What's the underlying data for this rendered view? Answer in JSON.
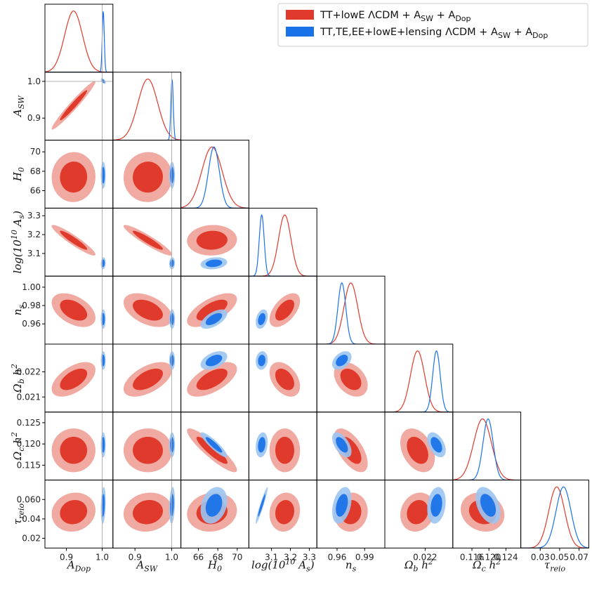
{
  "chart_data": {
    "type": "corner",
    "title": "",
    "legend": {
      "placement": "top-right",
      "entries": [
        {
          "label": "TT+lowE ΛCDM + A_SW + A_Dop",
          "color": "#e03a2c"
        },
        {
          "label": "TT,TE,EE+lowE+lensing ΛCDM + A_SW + A_Dop",
          "color": "#1a72e8"
        }
      ]
    },
    "colors": {
      "red_outer": "#f0aaa2",
      "red_inner": "#e03a2c",
      "blue_outer": "#9cc5f2",
      "blue_inner": "#1a72e8",
      "red_line": "#e03a2c",
      "blue_line": "#1a72e8",
      "reference": "#b0b0b0"
    },
    "parameters": [
      {
        "name": "A_Dop",
        "label": "A_Dop",
        "range": [
          0.84,
          1.03
        ],
        "ticks": [
          0.9,
          1.0
        ],
        "tick_labels": [
          "0.9",
          "1.0"
        ],
        "reference": 1.0
      },
      {
        "name": "A_SW",
        "label": "A_SW",
        "range": [
          0.84,
          1.025
        ],
        "ticks": [
          0.9,
          1.0
        ],
        "tick_labels": [
          "0.9",
          "1.0"
        ],
        "reference": 1.0
      },
      {
        "name": "H0",
        "label": "H_0",
        "range": [
          64.2,
          71.2
        ],
        "ticks": [
          66,
          68,
          70
        ],
        "tick_labels": [
          "66",
          "68",
          "70"
        ]
      },
      {
        "name": "logA",
        "label": "log(10^10 A_s)",
        "range": [
          2.98,
          3.34
        ],
        "ticks": [
          3.1,
          3.2,
          3.3
        ],
        "tick_labels": [
          "3.1",
          "3.2",
          "3.3"
        ]
      },
      {
        "name": "ns",
        "label": "n_s",
        "range": [
          0.938,
          1.012
        ],
        "ticks": [
          0.96,
          0.98,
          1.0
        ],
        "tick_labels": [
          "0.96",
          "0.98",
          "1.00"
        ],
        "x_tick_labels": [
          "0.96",
          "0.99"
        ],
        "x_ticks": [
          0.96,
          0.99
        ]
      },
      {
        "name": "ombh2",
        "label": "Ω_b h^2",
        "range": [
          0.0204,
          0.0231
        ],
        "ticks": [
          0.021,
          0.022
        ],
        "tick_labels": [
          "0.021",
          "0.022"
        ],
        "x_ticks": [
          0.022
        ],
        "x_tick_labels": [
          "0.022"
        ]
      },
      {
        "name": "omch2",
        "label": "Ω_c h^2",
        "range": [
          0.1115,
          0.1275
        ],
        "ticks": [
          0.115,
          0.12,
          0.125
        ],
        "tick_labels": [
          "0.115",
          "0.120",
          "0.125"
        ],
        "x_ticks": [
          0.116,
          0.12,
          0.124
        ],
        "x_tick_labels": [
          "0.116",
          "0.120",
          "0.124"
        ]
      },
      {
        "name": "tau",
        "label": "τ_reio",
        "range": [
          0.01,
          0.08
        ],
        "ticks": [
          0.02,
          0.04,
          0.06
        ],
        "tick_labels": [
          "0.02",
          "0.04",
          "0.060"
        ],
        "x_ticks": [
          0.03,
          0.05,
          0.07
        ],
        "x_tick_labels": [
          "0.03",
          "0.05",
          "0.07"
        ]
      }
    ],
    "series": [
      {
        "name": "TT+lowE ΛCDM + A_SW + A_Dop",
        "mean": [
          0.92,
          0.935,
          67.4,
          3.17,
          0.975,
          0.0217,
          0.1185,
          0.047
        ],
        "sigma": [
          0.025,
          0.027,
          1.05,
          0.033,
          0.0075,
          0.00028,
          0.0021,
          0.0082
        ]
      },
      {
        "name": "TT,TE,EE+lowE+lensing ΛCDM + A_SW + A_Dop",
        "mean": [
          1.003,
          1.001,
          67.6,
          3.048,
          0.9652,
          0.02245,
          0.1198,
          0.054
        ],
        "sigma": [
          0.0028,
          0.0032,
          0.56,
          0.013,
          0.0043,
          0.00015,
          0.0012,
          0.0077
        ]
      }
    ],
    "correlations": {
      "red": [
        [
          0,
          1,
          0.97
        ],
        [
          0,
          2,
          0.02
        ],
        [
          0,
          3,
          -0.93
        ],
        [
          0,
          4,
          -0.45
        ],
        [
          0,
          5,
          0.55
        ],
        [
          0,
          6,
          0.0
        ],
        [
          0,
          7,
          0.1
        ],
        [
          1,
          2,
          0.02
        ],
        [
          1,
          3,
          -0.93
        ],
        [
          1,
          4,
          -0.45
        ],
        [
          1,
          5,
          0.55
        ],
        [
          1,
          6,
          0.0
        ],
        [
          1,
          7,
          0.1
        ],
        [
          2,
          3,
          0.05
        ],
        [
          2,
          4,
          0.65
        ],
        [
          2,
          5,
          0.6
        ],
        [
          2,
          6,
          -0.9
        ],
        [
          2,
          7,
          0.1
        ],
        [
          3,
          4,
          0.55
        ],
        [
          3,
          5,
          -0.4
        ],
        [
          3,
          6,
          0.0
        ],
        [
          3,
          7,
          0.1
        ],
        [
          4,
          5,
          -0.35
        ],
        [
          4,
          6,
          -0.6
        ],
        [
          4,
          7,
          0.05
        ],
        [
          5,
          6,
          -0.35
        ],
        [
          5,
          7,
          0.15
        ],
        [
          6,
          7,
          -0.15
        ]
      ],
      "blue": [
        [
          0,
          1,
          -0.6
        ],
        [
          0,
          2,
          0.0
        ],
        [
          0,
          3,
          0.1
        ],
        [
          0,
          4,
          0.0
        ],
        [
          0,
          5,
          0.0
        ],
        [
          0,
          6,
          0.0
        ],
        [
          0,
          7,
          0.2
        ],
        [
          1,
          2,
          0.0
        ],
        [
          1,
          3,
          0.1
        ],
        [
          1,
          4,
          0.0
        ],
        [
          1,
          5,
          0.0
        ],
        [
          1,
          6,
          0.0
        ],
        [
          1,
          7,
          0.2
        ],
        [
          2,
          3,
          0.2
        ],
        [
          2,
          4,
          0.6
        ],
        [
          2,
          5,
          0.45
        ],
        [
          2,
          6,
          -0.9
        ],
        [
          2,
          7,
          0.25
        ],
        [
          3,
          4,
          0.3
        ],
        [
          3,
          5,
          0.1
        ],
        [
          3,
          6,
          0.2
        ],
        [
          3,
          7,
          0.95
        ],
        [
          4,
          5,
          0.4
        ],
        [
          4,
          6,
          -0.55
        ],
        [
          4,
          7,
          0.35
        ],
        [
          5,
          6,
          -0.45
        ],
        [
          5,
          7,
          0.2
        ],
        [
          6,
          7,
          -0.4
        ]
      ]
    }
  }
}
